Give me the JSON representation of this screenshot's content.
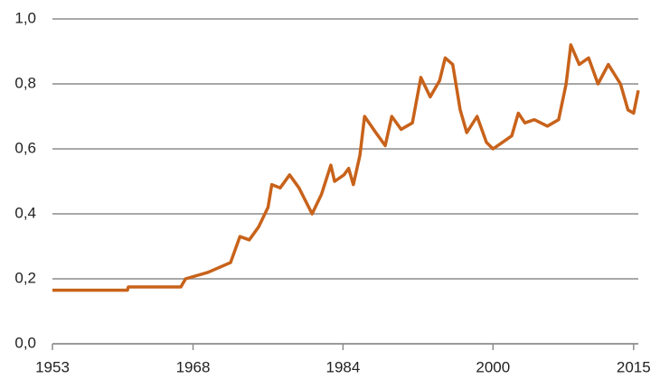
{
  "chart_data": {
    "type": "line",
    "x": [
      1953,
      1961,
      1961.1,
      1966.7,
      1967.2,
      1969.6,
      1972,
      1973,
      1974,
      1975,
      1976,
      1976.4,
      1977.3,
      1978.3,
      1979.3,
      1980.7,
      1981.7,
      1982.7,
      1983.1,
      1984.1,
      1984.6,
      1985.1,
      1985.8,
      1986.3,
      1987.5,
      1988.5,
      1989.2,
      1990.2,
      1991.4,
      1992.3,
      1993.3,
      1994.3,
      1994.9,
      1995.7,
      1996.5,
      1997.2,
      1998.3,
      1999.3,
      2000,
      2001,
      2002,
      2002.7,
      2003.4,
      2004.4,
      2005.8,
      2007,
      2007.8,
      2008.3,
      2009.2,
      2010.2,
      2011.2,
      2012.3,
      2013.6,
      2014.4,
      2015,
      2015.5
    ],
    "series": [
      {
        "color": "#c8621a",
        "values": [
          0.165,
          0.165,
          0.175,
          0.175,
          0.2,
          0.22,
          0.25,
          0.33,
          0.32,
          0.36,
          0.42,
          0.49,
          0.48,
          0.52,
          0.48,
          0.4,
          0.46,
          0.55,
          0.5,
          0.52,
          0.54,
          0.49,
          0.58,
          0.7,
          0.65,
          0.61,
          0.7,
          0.66,
          0.68,
          0.82,
          0.76,
          0.81,
          0.88,
          0.86,
          0.72,
          0.65,
          0.7,
          0.62,
          0.6,
          0.62,
          0.64,
          0.71,
          0.68,
          0.69,
          0.67,
          0.69,
          0.8,
          0.92,
          0.86,
          0.88,
          0.8,
          0.86,
          0.8,
          0.72,
          0.71,
          0.78
        ]
      }
    ],
    "xlim": [
      1953,
      2015.5
    ],
    "xticks": [
      1953,
      1968,
      1984,
      2000,
      2015
    ],
    "ylim": [
      0,
      1
    ],
    "yticks": [
      {
        "value": 0,
        "label": "0,0"
      },
      {
        "value": 0.2,
        "label": "0,2"
      },
      {
        "value": 0.4,
        "label": "0,4"
      },
      {
        "value": 0.6,
        "label": "0,6"
      },
      {
        "value": 0.8,
        "label": "0,8"
      },
      {
        "value": 1,
        "label": "1,0"
      }
    ],
    "grid": true
  }
}
